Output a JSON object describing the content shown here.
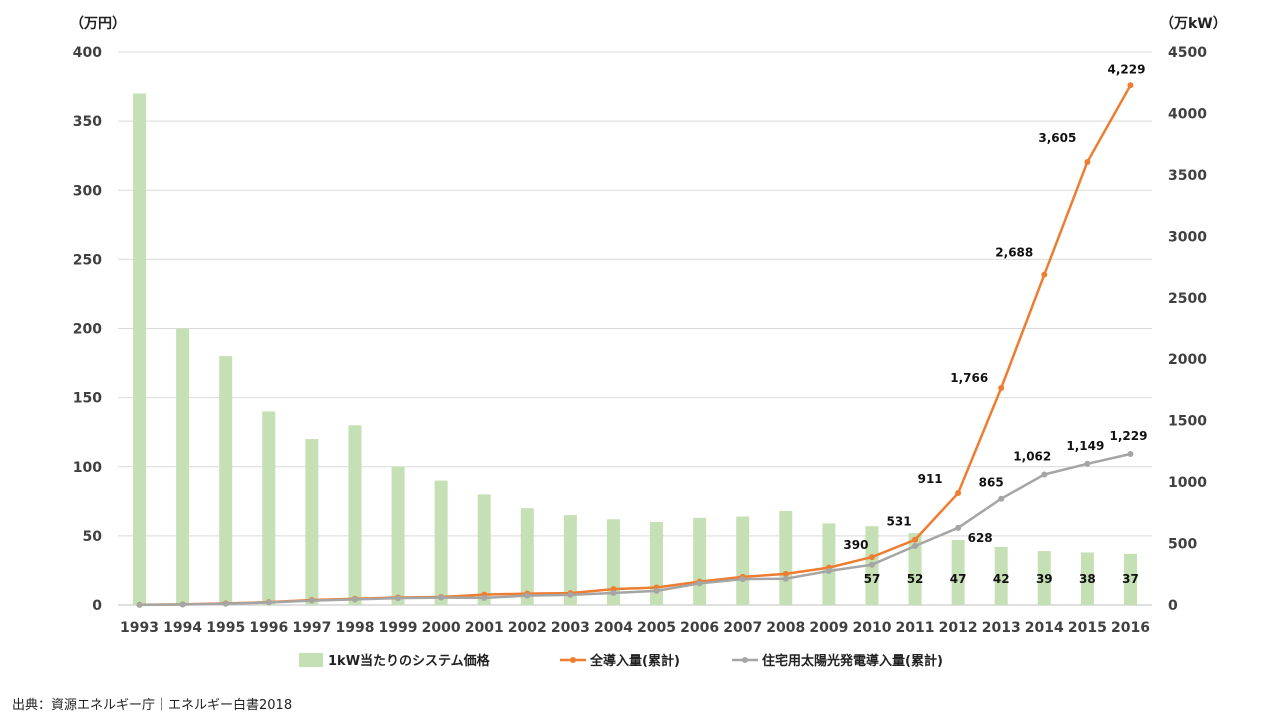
{
  "chart_data": {
    "type": "bar+line",
    "left_axis": {
      "unit_label": "（万円）",
      "min": 0,
      "max": 400,
      "ticks": [
        0,
        50,
        100,
        150,
        200,
        250,
        300,
        350,
        400
      ]
    },
    "right_axis": {
      "unit_label": "（万kW）",
      "min": 0,
      "max": 4500,
      "ticks": [
        0,
        500,
        1000,
        1500,
        2000,
        2500,
        3000,
        3500,
        4000,
        4500
      ]
    },
    "categories": [
      "1993",
      "1994",
      "1995",
      "1996",
      "1997",
      "1998",
      "1999",
      "2000",
      "2001",
      "2002",
      "2003",
      "2004",
      "2005",
      "2006",
      "2007",
      "2008",
      "2009",
      "2010",
      "2011",
      "2012",
      "2013",
      "2014",
      "2015",
      "2016"
    ],
    "bars": {
      "name": "1kW当たりのシステム価格",
      "color": "#c5e0b4",
      "axis": "left",
      "values": [
        370,
        200,
        180,
        140,
        120,
        130,
        100,
        90,
        80,
        70,
        65,
        62,
        60,
        63,
        64,
        68,
        59,
        57,
        52,
        47,
        42,
        39,
        38,
        37
      ],
      "data_labels": [
        "",
        "",
        "",
        "",
        "",
        "",
        "",
        "",
        "",
        "",
        "",
        "",
        "",
        "",
        "",
        "",
        "",
        "57",
        "52",
        "47",
        "42",
        "39",
        "38",
        "37"
      ]
    },
    "lines": [
      {
        "name": "全導入量(累計)",
        "color": "#ed7d31",
        "axis": "right",
        "values": [
          2,
          5,
          13,
          23,
          41,
          51,
          61,
          65,
          84,
          93,
          97,
          129,
          142,
          190,
          229,
          253,
          304,
          390,
          531,
          911,
          1766,
          2688,
          3605,
          4229
        ],
        "data_labels": [
          "",
          "",
          "",
          "",
          "",
          "",
          "",
          "",
          "",
          "",
          "",
          "",
          "",
          "",
          "",
          "",
          "",
          "390",
          "531",
          "911",
          "1,766",
          "2,688",
          "3,605",
          "4,229"
        ]
      },
      {
        "name": "住宅用太陽光発電導入量(累計)",
        "color": "#a5a5a5",
        "axis": "right",
        "values": [
          1,
          4,
          10,
          20,
          36,
          46,
          56,
          60,
          58,
          76,
          82,
          98,
          115,
          176,
          211,
          214,
          277,
          328,
          480,
          628,
          865,
          1062,
          1149,
          1229
        ],
        "data_labels": [
          "",
          "",
          "",
          "",
          "",
          "",
          "",
          "",
          "",
          "",
          "",
          "",
          "",
          "",
          "",
          "",
          "",
          "",
          "",
          "628",
          "865",
          "1,062",
          "1,149",
          "1,229"
        ]
      }
    ],
    "grid": true,
    "legend": "bottom"
  },
  "source_note": "出典：資源エネルギー庁｜エネルギー白書2018"
}
